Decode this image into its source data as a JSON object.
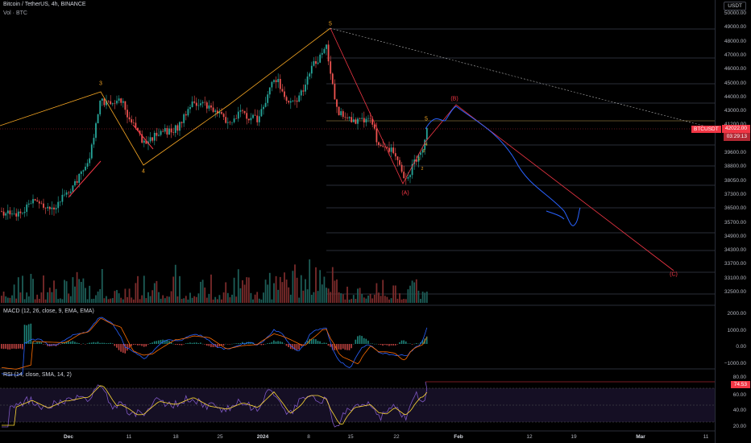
{
  "header": {
    "title": "Bitcoin / TetherUS, 4h, BINANCE",
    "subtitle": "Vol · BTC"
  },
  "price_axis": {
    "currency": "USDT",
    "labels": [
      "50000.00",
      "49000.00",
      "48000.00",
      "47000.00",
      "46000.00",
      "45000.00",
      "44000.00",
      "43000.00",
      "41200.00",
      "40400.00",
      "39600.00",
      "38800.00",
      "38050.00",
      "37300.00",
      "36500.00",
      "35700.00",
      "34900.00",
      "34300.00",
      "33700.00",
      "33100.00",
      "32500.00"
    ],
    "current_price": "42022.00",
    "countdown": "03:29:13",
    "symbol_tag": "BTCUSDT"
  },
  "macd_pane": {
    "label": "MACD (12, 26, close, 9, EMA, EMA)",
    "axis_labels": [
      "2000.00",
      "1000.00",
      "0.00",
      "−1000.00"
    ]
  },
  "rsi_pane": {
    "label": "RSI (14, close, SMA, 14, 2)",
    "axis_labels": [
      "80.00",
      "60.00",
      "40.00",
      "20.00"
    ],
    "current_value": "74.53"
  },
  "time_axis": {
    "labels": [
      {
        "text": "Dec",
        "bold": true
      },
      {
        "text": "11",
        "bold": false
      },
      {
        "text": "18",
        "bold": false
      },
      {
        "text": "25",
        "bold": false
      },
      {
        "text": "2024",
        "bold": true
      },
      {
        "text": "8",
        "bold": false
      },
      {
        "text": "15",
        "bold": false
      },
      {
        "text": "22",
        "bold": false
      },
      {
        "text": "Feb",
        "bold": true
      },
      {
        "text": "12",
        "bold": false
      },
      {
        "text": "19",
        "bold": false
      },
      {
        "text": "Mar",
        "bold": true
      },
      {
        "text": "11",
        "bold": false
      }
    ]
  },
  "wave_labels": {
    "w3": "3",
    "w4": "4",
    "w5_top": "5",
    "A": "(A)",
    "B": "(B)",
    "C": "(C)",
    "sub1": "1",
    "sub2": "2",
    "sub3": "3",
    "sub4": "4",
    "sub5": "5"
  },
  "colors": {
    "background": "#000000",
    "bull": "#26a69a",
    "bear": "#ef5350",
    "wave_gold": "#f5a623",
    "wave_red": "#f23645",
    "projection_blue": "#2962ff",
    "macd_line": "#2962ff",
    "signal_line": "#ff6d00",
    "rsi_line": "#7e57c2",
    "rsi_ma": "#fdd835"
  }
}
